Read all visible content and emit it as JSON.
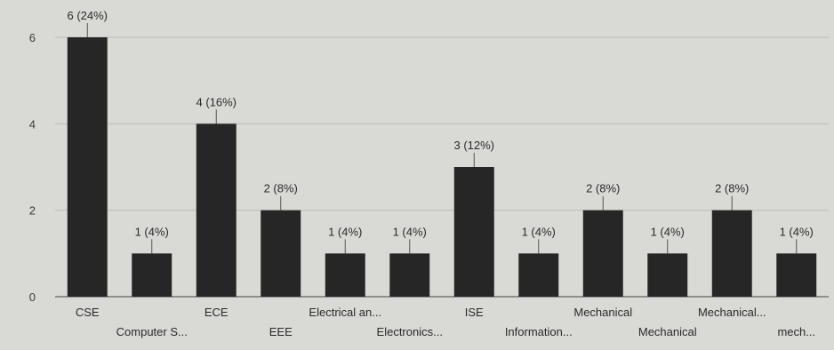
{
  "chart_data": {
    "type": "bar",
    "categories": [
      "CSE",
      "Computer S...",
      "ECE",
      "EEE",
      "Electrical an...",
      "Electronics...",
      "ISE",
      "Information...",
      "Mechanical",
      "Mechanical",
      "Mechanical...",
      "mech..."
    ],
    "values": [
      6,
      1,
      4,
      2,
      1,
      1,
      3,
      1,
      2,
      1,
      2,
      1
    ],
    "data_labels": [
      "6 (24%)",
      "1 (4%)",
      "4 (16%)",
      "2 (8%)",
      "1 (4%)",
      "1 (4%)",
      "3 (12%)",
      "1 (4%)",
      "2 (8%)",
      "1 (4%)",
      "2 (8%)",
      "1 (4%)"
    ],
    "yticks": [
      "0",
      "2",
      "4",
      "6"
    ],
    "ylim": [
      0,
      6
    ],
    "grid": true,
    "bar_color": "#262626"
  }
}
